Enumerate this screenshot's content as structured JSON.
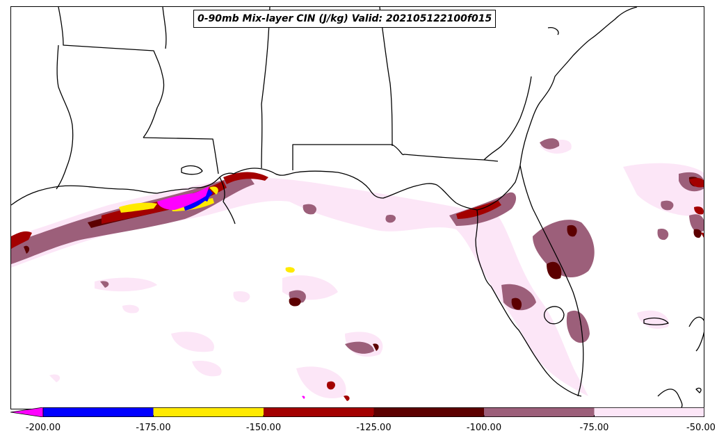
{
  "title": "0-90mb Mix-layer CIN (J/kg) Valid: 202105122100f015",
  "colorbar": {
    "levels": [
      -200.0,
      -175.0,
      -150.0,
      -125.0,
      -100.0,
      -75.0,
      -50.0
    ],
    "tick_labels": [
      "-200.00",
      "-175.00",
      "-150.00",
      "-125.00",
      "-100.00",
      "-75.00",
      "-50.00"
    ],
    "extend": "min",
    "under_color": "#ff00ff",
    "colors": [
      "#0000ff",
      "#ffea00",
      "#a30000",
      "#5c0000",
      "#9c5f7a",
      "#fce6f7"
    ]
  },
  "map": {
    "land_outline_color": "#000000",
    "background_color": "#ffffff"
  }
}
